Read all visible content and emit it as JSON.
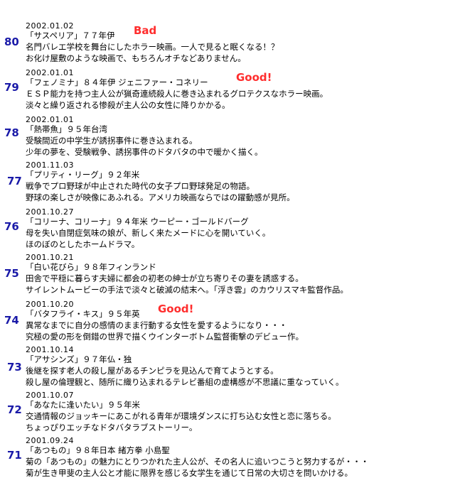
{
  "entries": [
    {
      "number": "80",
      "date": "2002.01.02",
      "title_line": "「サスペリア」７７年伊",
      "badge": "Bad",
      "line2": "名門バレエ学校を舞台にしたホラー映画。一人で見ると眠くなる！？",
      "line3": "お化け屋敷のような映画で、もちろんオチなどありません。"
    },
    {
      "number": "79",
      "date": "2002.01.01",
      "title_line": "「フェノミナ」８４年伊 ジェニファー・コネリー",
      "badge": "Good!",
      "line2": "ＥＳＰ能力を持つ主人公が猟奇連続殺人に巻き込まれるグロテクスなホラー映画。",
      "line3": "淡々と繰り返される惨殺が主人公の女性に降りかかる。"
    },
    {
      "number": "78",
      "date": "2002.01.01",
      "title_line": "「熱帯魚」９５年台湾",
      "badge": "",
      "line2": "受験間近の中学生が誘拐事件に巻き込まれる。",
      "line3": "少年の夢を、受験戦争、誘拐事件のドタバタの中で暖かく描く。"
    },
    {
      "number": "77",
      "date": "2001.11.03",
      "title_line": "「プリティ・リーグ」９２年米",
      "badge": "",
      "line2": "戦争でプロ野球が中止された時代の女子プロ野球発足の物語。",
      "line3": "野球の楽しさが映像にあふれる。アメリカ映画ならではの躍動感が見所。"
    },
    {
      "number": "76",
      "date": "2001.10.27",
      "title_line": "「コリーナ、コリーナ」９４年米 ウーピー・ゴールドバーグ",
      "badge": "",
      "line2": "母を失い自閉症気味の娘が、新しく来たメードに心を開いていく。",
      "line3": "ほのぼのとしたホームドラマ。"
    },
    {
      "number": "75",
      "date": "2001.10.21",
      "title_line": "「白い花びら」９８年フィンランド",
      "badge": "",
      "line2": "田舎で平穏に暮らす夫婦に都会の初老の紳士が立ち寄りその妻を誘惑する。",
      "line3": "サイレントムービーの手法で淡々と破滅の結末へ。「浮き雲」のカウリスマキ監督作品。"
    },
    {
      "number": "74",
      "date": "2001.10.20",
      "title_line": "「バタフライ・キス」９５年英",
      "badge": "Good!",
      "line2": "異常なまでに自分の感情のまま行動する女性を愛するようになり・・・",
      "line3": "究極の愛の形を倒錯の世界で描くウインターボトム監督衝撃のデビュー作。"
    },
    {
      "number": "73",
      "date": "2001.10.14",
      "title_line": "「アサシンズ」９７年仏・独",
      "badge": "",
      "line2": "後継を探す老人の殺し屋があるチンピラを見込んで育てようとする。",
      "line3": "殺し屋の倫理観と、随所に織り込まれるテレビ番組の虚構感が不思議に重なっていく。"
    },
    {
      "number": "72",
      "date": "2001.10.07",
      "title_line": "「あなたに逢いたい」９５年米",
      "badge": "",
      "line2": "交通情報のジョッキーにあこがれる青年が環境ダンスに打ち込む女性と恋に落ちる。",
      "line3": "ちょっぴりエッチなドタバタラブストーリー。"
    },
    {
      "number": "71",
      "date": "2001.09.24",
      "title_line": "「あつもの」９８年日本 緒方拳 小島聖",
      "badge": "",
      "line2": "菊の「あつもの」の魅力にとりつかれた主人公が、その名人に追いつこうと努力するが・・・",
      "line3": "菊が生き甲斐の主人公と才能に限界を感じる女学生を通じて日常の大切さを問いかける。"
    }
  ]
}
